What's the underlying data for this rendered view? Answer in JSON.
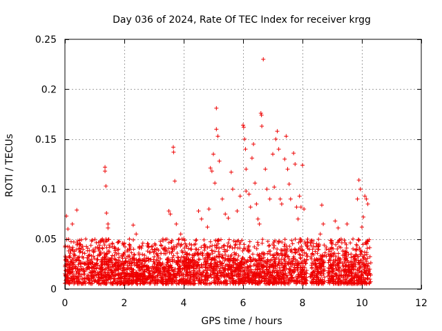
{
  "chart_data": {
    "type": "scatter",
    "title": "Day 036 of 2024, Rate Of TEC Index for receiver krgg",
    "xlabel": "GPS time / hours",
    "ylabel": "ROTI / TECUs",
    "xlim": [
      0,
      12
    ],
    "ylim": [
      0,
      0.25
    ],
    "x_ticks": [
      0,
      2,
      4,
      6,
      8,
      10,
      12
    ],
    "x_tick_labels": [
      "0",
      "2",
      "4",
      "6",
      "8",
      "10",
      "12"
    ],
    "y_ticks": [
      0,
      0.05,
      0.1,
      0.15,
      0.2,
      0.25
    ],
    "y_tick_labels": [
      "0",
      "0.05",
      "0.1",
      "0.15",
      "0.2",
      "0.25"
    ],
    "grid": true,
    "marker": "plus",
    "color": "#ee0000",
    "x_data_range": [
      0,
      10.3
    ],
    "baseline_range": [
      0.005,
      0.03
    ],
    "series": [
      {
        "name": "ROTI",
        "points": [
          [
            0.05,
            0.073
          ],
          [
            0.1,
            0.06
          ],
          [
            0.15,
            0.042
          ],
          [
            0.25,
            0.065
          ],
          [
            0.4,
            0.079
          ],
          [
            0.5,
            0.045
          ],
          [
            0.7,
            0.05
          ],
          [
            0.9,
            0.048
          ],
          [
            1.1,
            0.042
          ],
          [
            1.3,
            0.047
          ],
          [
            1.35,
            0.122
          ],
          [
            1.35,
            0.118
          ],
          [
            1.38,
            0.103
          ],
          [
            1.4,
            0.076
          ],
          [
            1.45,
            0.065
          ],
          [
            1.45,
            0.061
          ],
          [
            1.6,
            0.045
          ],
          [
            1.8,
            0.04
          ],
          [
            2.0,
            0.046
          ],
          [
            2.3,
            0.064
          ],
          [
            2.4,
            0.055
          ],
          [
            2.6,
            0.043
          ],
          [
            2.8,
            0.045
          ],
          [
            3.1,
            0.04
          ],
          [
            3.3,
            0.05
          ],
          [
            3.5,
            0.078
          ],
          [
            3.55,
            0.075
          ],
          [
            3.65,
            0.142
          ],
          [
            3.66,
            0.137
          ],
          [
            3.7,
            0.108
          ],
          [
            3.75,
            0.065
          ],
          [
            3.9,
            0.055
          ],
          [
            4.0,
            0.05
          ],
          [
            4.2,
            0.045
          ],
          [
            4.4,
            0.045
          ],
          [
            4.5,
            0.078
          ],
          [
            4.6,
            0.07
          ],
          [
            4.8,
            0.062
          ],
          [
            4.85,
            0.08
          ],
          [
            4.9,
            0.121
          ],
          [
            4.95,
            0.118
          ],
          [
            5.0,
            0.135
          ],
          [
            5.05,
            0.106
          ],
          [
            5.1,
            0.181
          ],
          [
            5.1,
            0.16
          ],
          [
            5.15,
            0.153
          ],
          [
            5.2,
            0.128
          ],
          [
            5.3,
            0.09
          ],
          [
            5.4,
            0.075
          ],
          [
            5.5,
            0.071
          ],
          [
            5.6,
            0.117
          ],
          [
            5.65,
            0.1
          ],
          [
            5.8,
            0.078
          ],
          [
            5.9,
            0.093
          ],
          [
            6.0,
            0.164
          ],
          [
            6.02,
            0.162
          ],
          [
            6.05,
            0.15
          ],
          [
            6.08,
            0.14
          ],
          [
            6.1,
            0.12
          ],
          [
            6.1,
            0.098
          ],
          [
            6.2,
            0.095
          ],
          [
            6.25,
            0.082
          ],
          [
            6.3,
            0.131
          ],
          [
            6.35,
            0.145
          ],
          [
            6.4,
            0.106
          ],
          [
            6.45,
            0.085
          ],
          [
            6.5,
            0.07
          ],
          [
            6.55,
            0.065
          ],
          [
            6.6,
            0.176
          ],
          [
            6.62,
            0.174
          ],
          [
            6.63,
            0.163
          ],
          [
            6.68,
            0.23
          ],
          [
            6.75,
            0.12
          ],
          [
            6.8,
            0.1
          ],
          [
            6.9,
            0.09
          ],
          [
            7.0,
            0.135
          ],
          [
            7.05,
            0.102
          ],
          [
            7.1,
            0.15
          ],
          [
            7.15,
            0.158
          ],
          [
            7.2,
            0.14
          ],
          [
            7.25,
            0.09
          ],
          [
            7.3,
            0.085
          ],
          [
            7.4,
            0.13
          ],
          [
            7.45,
            0.153
          ],
          [
            7.5,
            0.12
          ],
          [
            7.55,
            0.105
          ],
          [
            7.6,
            0.09
          ],
          [
            7.7,
            0.136
          ],
          [
            7.75,
            0.125
          ],
          [
            7.8,
            0.082
          ],
          [
            7.85,
            0.07
          ],
          [
            7.9,
            0.093
          ],
          [
            7.95,
            0.082
          ],
          [
            8.0,
            0.124
          ],
          [
            8.05,
            0.08
          ],
          [
            8.1,
            0.045
          ],
          [
            8.3,
            0.03
          ],
          [
            8.6,
            0.055
          ],
          [
            8.65,
            0.084
          ],
          [
            8.7,
            0.065
          ],
          [
            8.8,
            0.04
          ],
          [
            9.0,
            0.045
          ],
          [
            9.1,
            0.068
          ],
          [
            9.2,
            0.061
          ],
          [
            9.3,
            0.05
          ],
          [
            9.5,
            0.065
          ],
          [
            9.7,
            0.05
          ],
          [
            9.85,
            0.09
          ],
          [
            9.9,
            0.109
          ],
          [
            9.95,
            0.1
          ],
          [
            10.0,
            0.062
          ],
          [
            10.05,
            0.072
          ],
          [
            10.1,
            0.093
          ],
          [
            10.15,
            0.09
          ],
          [
            10.2,
            0.085
          ]
        ]
      }
    ]
  }
}
